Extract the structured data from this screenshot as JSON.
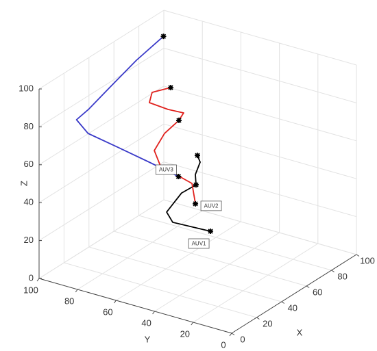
{
  "chart_data": {
    "type": "line3d",
    "xlabel": "X",
    "ylabel": "Y",
    "zlabel": "Z",
    "xlim": [
      0,
      100
    ],
    "ylim": [
      0,
      100
    ],
    "zlim": [
      0,
      100
    ],
    "xticks": [
      0,
      20,
      40,
      60,
      80,
      100
    ],
    "yticks": [
      0,
      20,
      40,
      60,
      80,
      100
    ],
    "zticks": [
      0,
      20,
      40,
      60,
      80,
      100
    ],
    "grid": true,
    "series": [
      {
        "name": "AUV1",
        "color": "#000000",
        "x": [
          42,
          44.2,
          38.8,
          37.8,
          24.7,
          9.6,
          11.4,
          32.4
        ],
        "y": [
          45,
          45,
          44,
          43,
          42,
          40,
          38,
          32
        ],
        "z": [
          63.4,
          58.9,
          54.9,
          50.2,
          51.6,
          48.4,
          42.8,
          31.1
        ],
        "marker_points": [
          0,
          3,
          7
        ]
      },
      {
        "name": "AUV2",
        "color": "#e0201c",
        "x": [
          59.2,
          47.4,
          45.2,
          57,
          66.5,
          59.6,
          46.5,
          38.3,
          40.7,
          50.9,
          53.1,
          51.2
        ],
        "y": [
          70,
          72,
          72,
          70,
          68,
          66,
          65,
          65,
          63,
          60,
          55,
          52
        ],
        "z": [
          84.8,
          86.6,
          82.1,
          74.2,
          69,
          68.5,
          67.3,
          61.7,
          52.3,
          44.2,
          41.1,
          32
        ],
        "marker_points": [
          0,
          5,
          11
        ]
      },
      {
        "name": "AUV3",
        "color": "#3a3ac8",
        "x": [
          92,
          75,
          55,
          38,
          30,
          30,
          35,
          42,
          50
        ],
        "y": [
          95,
          98,
          98,
          99,
          100,
          94,
          82,
          70,
          60
        ],
        "z": [
          91,
          84.6,
          79.5,
          73.7,
          71.3,
          65.8,
          60,
          52.6,
          44.6
        ],
        "marker_points": [
          0,
          8
        ]
      }
    ]
  }
}
